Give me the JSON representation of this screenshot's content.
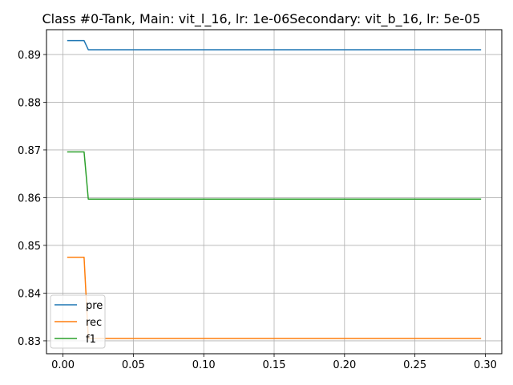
{
  "chart_data": {
    "type": "line",
    "title": "Class #0-Tank, Main: vit_l_16, lr: 1e-06Secondary: vit_b_16, lr: 5e-05",
    "xlabel": "",
    "ylabel": "",
    "xlim": [
      -0.0117,
      0.3117
    ],
    "ylim": [
      0.8273,
      0.8952
    ],
    "grid": true,
    "legend_position": "lower-left",
    "x_ticks": [
      0.0,
      0.05,
      0.1,
      0.15,
      0.2,
      0.25,
      0.3
    ],
    "x_tick_labels": [
      "0.00",
      "0.05",
      "0.10",
      "0.15",
      "0.20",
      "0.25",
      "0.30"
    ],
    "y_ticks": [
      0.83,
      0.84,
      0.85,
      0.86,
      0.87,
      0.88,
      0.89
    ],
    "y_tick_labels": [
      "0.83",
      "0.84",
      "0.85",
      "0.86",
      "0.87",
      "0.88",
      "0.89"
    ],
    "series": [
      {
        "name": "pre",
        "color": "#1f77b4",
        "x": [
          0.003,
          0.015,
          0.018,
          0.297
        ],
        "y": [
          0.8929,
          0.8929,
          0.891,
          0.891
        ]
      },
      {
        "name": "rec",
        "color": "#ff7f0e",
        "x": [
          0.003,
          0.015,
          0.018,
          0.297
        ],
        "y": [
          0.8475,
          0.8475,
          0.8305,
          0.8305
        ]
      },
      {
        "name": "f1",
        "color": "#2ca02c",
        "x": [
          0.003,
          0.015,
          0.018,
          0.297
        ],
        "y": [
          0.8696,
          0.8696,
          0.8597,
          0.8597
        ]
      }
    ]
  }
}
